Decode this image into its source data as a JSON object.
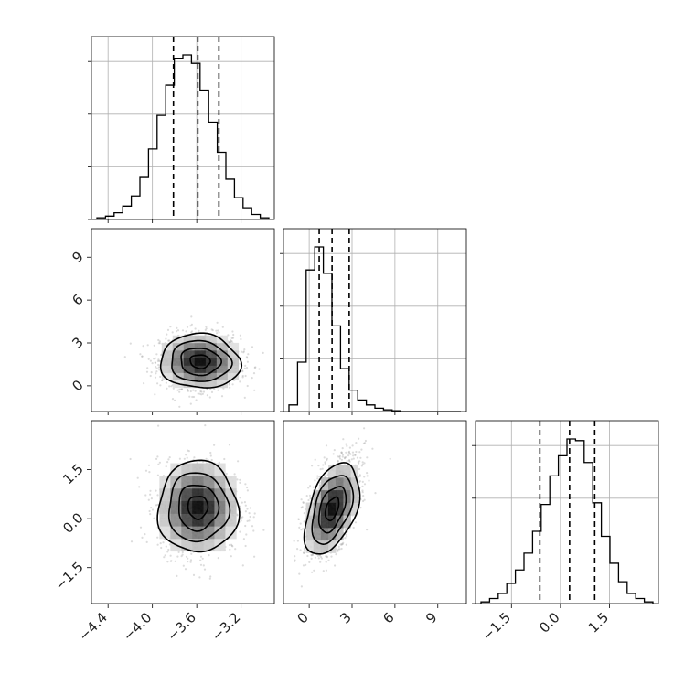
{
  "chart_data": {
    "type": "corner",
    "title": "",
    "params": [
      {
        "range": [
          -4.55,
          -2.9
        ],
        "ticks": [
          "-4.4",
          "-4.0",
          "-3.6",
          "-3.2"
        ],
        "tick_values": [
          -4.4,
          -4.0,
          -3.6,
          -3.2
        ],
        "quantiles": [
          -3.81,
          -3.59,
          -3.4
        ]
      },
      {
        "range": [
          -1.8,
          11.0
        ],
        "ticks": [
          "0",
          "3",
          "6",
          "9"
        ],
        "tick_values": [
          0,
          3,
          6,
          9
        ],
        "quantiles": [
          0.7,
          1.6,
          2.8
        ]
      },
      {
        "range": [
          -2.6,
          3.0
        ],
        "ticks": [
          "-1.5",
          "0.0",
          "1.5"
        ],
        "tick_values": [
          -1.5,
          0.0,
          1.5
        ],
        "quantiles": [
          -0.63,
          0.28,
          1.05
        ]
      }
    ],
    "histograms": [
      {
        "param": 0,
        "bins": 20,
        "counts": [
          1,
          2,
          4,
          8,
          14,
          25,
          42,
          62,
          80,
          96,
          98,
          93,
          77,
          58,
          40,
          24,
          13,
          7,
          3,
          1
        ]
      },
      {
        "param": 1,
        "bins": 20,
        "counts": [
          4,
          30,
          86,
          100,
          84,
          52,
          26,
          13,
          7,
          4,
          2,
          1,
          0.5,
          0,
          0,
          0,
          0,
          0,
          0,
          0
        ]
      },
      {
        "param": 2,
        "bins": 20,
        "counts": [
          1,
          3,
          6,
          12,
          20,
          30,
          43,
          59,
          76,
          88,
          98,
          97,
          84,
          60,
          40,
          24,
          13,
          6,
          3,
          1
        ]
      }
    ],
    "density_panels": [
      {
        "x_param": 0,
        "y_param": 1,
        "center": [
          -3.57,
          1.7
        ],
        "sigma": [
          0.18,
          0.95
        ],
        "rho": -0.05
      },
      {
        "x_param": 0,
        "y_param": 2,
        "center": [
          -3.59,
          0.35
        ],
        "sigma": [
          0.18,
          0.7
        ],
        "rho": 0.0
      },
      {
        "x_param": 1,
        "y_param": 2,
        "center": [
          1.6,
          0.3
        ],
        "sigma": [
          0.95,
          0.7
        ],
        "rho": 0.45
      }
    ],
    "contour_levels_sigma": [
      0.5,
      1.0,
      1.5,
      2.0
    ],
    "grid": true
  }
}
